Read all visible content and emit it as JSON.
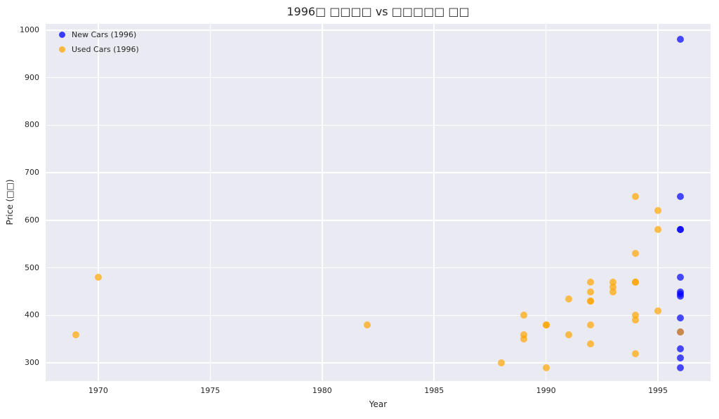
{
  "chart_data": {
    "type": "scatter",
    "title": "1996□ □□□□ vs □□□□□ □□",
    "xlabel": "Year",
    "ylabel": "Price (□□)",
    "xlim": [
      1967.65,
      1997.35
    ],
    "ylim": [
      262,
      1013
    ],
    "x_ticks": [
      1970,
      1975,
      1980,
      1985,
      1990,
      1995
    ],
    "y_ticks": [
      300,
      400,
      500,
      600,
      700,
      800,
      900,
      1000
    ],
    "grid": true,
    "legend_position": "upper left",
    "plot_background": "#eaeaf2",
    "grid_color": "#ffffff",
    "marker_size": 10,
    "marker_opacity": 0.7,
    "series": [
      {
        "name": "New Cars (1996)",
        "color": "#0000ff",
        "points": [
          [
            1996,
            980
          ],
          [
            1996,
            650
          ],
          [
            1996,
            580
          ],
          [
            1996,
            580
          ],
          [
            1996,
            480
          ],
          [
            1996,
            450
          ],
          [
            1996,
            445
          ],
          [
            1996,
            440
          ],
          [
            1996,
            395
          ],
          [
            1996,
            365
          ],
          [
            1996,
            330
          ],
          [
            1996,
            310
          ],
          [
            1996,
            290
          ]
        ]
      },
      {
        "name": "Used Cars (1996)",
        "color": "#ffa500",
        "points": [
          [
            1969,
            360
          ],
          [
            1970,
            480
          ],
          [
            1982,
            380
          ],
          [
            1988,
            300
          ],
          [
            1989,
            400
          ],
          [
            1989,
            360
          ],
          [
            1989,
            350
          ],
          [
            1990,
            380
          ],
          [
            1990,
            380
          ],
          [
            1990,
            290
          ],
          [
            1991,
            435
          ],
          [
            1991,
            360
          ],
          [
            1992,
            470
          ],
          [
            1992,
            450
          ],
          [
            1992,
            430
          ],
          [
            1992,
            430
          ],
          [
            1992,
            380
          ],
          [
            1992,
            340
          ],
          [
            1993,
            470
          ],
          [
            1993,
            460
          ],
          [
            1993,
            450
          ],
          [
            1994,
            650
          ],
          [
            1994,
            530
          ],
          [
            1994,
            470
          ],
          [
            1994,
            470
          ],
          [
            1994,
            400
          ],
          [
            1994,
            390
          ],
          [
            1994,
            320
          ],
          [
            1995,
            620
          ],
          [
            1995,
            580
          ],
          [
            1995,
            410
          ],
          [
            1996,
            365
          ]
        ]
      }
    ]
  }
}
